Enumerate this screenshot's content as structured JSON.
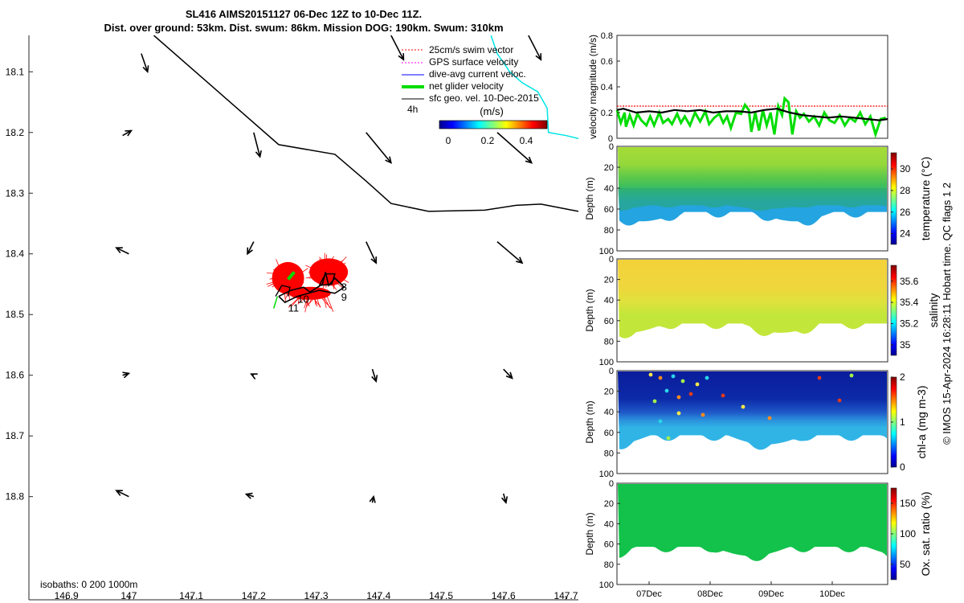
{
  "title": {
    "line1": "SL416 AIMS20151127 06-Dec 12Z to 10-Dec 11Z.",
    "line2": "Dist. over ground: 53km. Dist. swum: 86km. Mission DOG: 190km. Swum: 310km"
  },
  "legend": {
    "items": [
      {
        "label": "25cm/s swim vector",
        "color": "#ff0000",
        "style": "dotted"
      },
      {
        "label": "GPS surface velocity",
        "color": "#ff00ff",
        "style": "dotted"
      },
      {
        "label": "dive-avg current veloc.",
        "color": "#0000ff",
        "style": "solid"
      },
      {
        "label": "net glider velocity",
        "color": "#00dd00",
        "style": "thick"
      },
      {
        "label": "sfc geo. vel. 10-Dec-2015",
        "color": "#000000",
        "style": "solid"
      }
    ],
    "four_h": "4h"
  },
  "colorbar": {
    "label": "(m/s)",
    "ticks": [
      "0",
      "0.2",
      "0.4"
    ]
  },
  "isobaths_label": "isobaths: 0   200  1000m",
  "footer": "© IMOS 15-Apr-2024 16:28:11 Hobart time. QC flags 1  2",
  "colors": {
    "coast": "#000000",
    "isobath_200": "#00e5e5",
    "swim_vectors": "#ff0000",
    "track": "#000000",
    "net_velocity": "#00dd00",
    "limit_line": "#ff0000"
  },
  "chart_data": [
    {
      "type": "scatter",
      "name": "map",
      "xticks": [
        "146.9",
        "147",
        "147.1",
        "147.2",
        "147.3",
        "147.4",
        "147.5",
        "147.6",
        "147.7"
      ],
      "yticks": [
        "18.1",
        "18.2",
        "18.3",
        "18.4",
        "18.5",
        "18.6",
        "18.7",
        "18.8"
      ],
      "xlim": [
        146.84,
        147.72
      ],
      "ylim": [
        18.04,
        18.97
      ],
      "y_reversed": true,
      "coastline": [
        [
          147.04,
          18.04
        ],
        [
          147.24,
          18.22
        ],
        [
          147.33,
          18.236
        ],
        [
          147.38,
          18.28
        ],
        [
          147.42,
          18.317
        ],
        [
          147.48,
          18.33
        ],
        [
          147.57,
          18.328
        ],
        [
          147.62,
          18.32
        ],
        [
          147.66,
          18.318
        ],
        [
          147.72,
          18.33
        ]
      ],
      "isobath_200m": [
        [
          147.58,
          18.04
        ],
        [
          147.59,
          18.07
        ],
        [
          147.61,
          18.1
        ],
        [
          147.63,
          18.118
        ],
        [
          147.655,
          18.133
        ],
        [
          147.67,
          18.16
        ],
        [
          147.672,
          18.2
        ],
        [
          147.7,
          18.205
        ],
        [
          147.72,
          18.21
        ]
      ],
      "geostrophic_arrows": [
        [
          147.02,
          18.07,
          0.01,
          0.03
        ],
        [
          147.42,
          18.04,
          0.02,
          0.04
        ],
        [
          147.64,
          18.04,
          0.02,
          0.04
        ],
        [
          146.99,
          18.205,
          0.014,
          -0.008
        ],
        [
          147.2,
          18.2,
          0.01,
          0.04
        ],
        [
          147.38,
          18.2,
          0.04,
          0.05
        ],
        [
          147.59,
          18.2,
          0.055,
          0.05
        ],
        [
          147.0,
          18.4,
          -0.02,
          -0.01
        ],
        [
          147.2,
          18.38,
          -0.01,
          0.02
        ],
        [
          147.38,
          18.38,
          0.016,
          0.035
        ],
        [
          147.59,
          18.38,
          0.04,
          0.035
        ],
        [
          146.99,
          18.6,
          0.01,
          -0.003
        ],
        [
          147.2,
          18.6,
          -0.004,
          -0.002
        ],
        [
          147.39,
          18.59,
          0.006,
          0.02
        ],
        [
          147.6,
          18.59,
          0.014,
          0.015
        ],
        [
          147.0,
          18.8,
          -0.02,
          -0.01
        ],
        [
          147.2,
          18.8,
          -0.012,
          -0.004
        ],
        [
          147.39,
          18.81,
          0.002,
          -0.01
        ],
        [
          147.6,
          18.795,
          0.004,
          0.015
        ]
      ],
      "glider_track": [
        [
          147.24,
          18.47
        ],
        [
          147.26,
          18.46
        ],
        [
          147.28,
          18.455
        ],
        [
          147.29,
          18.463
        ],
        [
          147.31,
          18.45
        ],
        [
          147.315,
          18.43
        ],
        [
          147.32,
          18.452
        ],
        [
          147.33,
          18.44
        ],
        [
          147.345,
          18.455
        ],
        [
          147.33,
          18.465
        ],
        [
          147.305,
          18.46
        ],
        [
          147.27,
          18.47
        ],
        [
          147.25,
          18.48
        ],
        [
          147.24,
          18.47
        ]
      ],
      "track_labels": [
        {
          "text": "8",
          "x": 147.34,
          "y": 18.455
        },
        {
          "text": "9",
          "x": 147.34,
          "y": 18.472
        },
        {
          "text": "10",
          "x": 147.27,
          "y": 18.475
        },
        {
          "text": "11",
          "x": 147.255,
          "y": 18.49
        }
      ],
      "red_clusters": [
        {
          "x": 147.255,
          "y": 18.44
        },
        {
          "x": 147.32,
          "y": 18.43
        }
      ]
    },
    {
      "type": "line",
      "name": "velocity",
      "ylabel": "velocity magnitude (m/s)",
      "ylim": [
        0,
        0.8
      ],
      "yticks": [
        "0",
        "0.2",
        "0.4",
        "0.6",
        "0.8"
      ],
      "xlim": [
        0,
        4.23
      ],
      "series": [
        {
          "values_x": [
            0,
            0.1,
            0.3,
            0.5,
            0.7,
            0.9,
            1.1,
            1.3,
            1.5,
            1.7,
            1.9,
            2.1,
            2.3,
            2.5,
            2.7,
            2.9,
            3.1,
            3.3,
            3.5,
            3.7,
            3.9,
            4.1,
            4.23
          ],
          "values_y": [
            0.22,
            0.23,
            0.2,
            0.21,
            0.2,
            0.22,
            0.21,
            0.22,
            0.2,
            0.21,
            0.21,
            0.2,
            0.22,
            0.23,
            0.2,
            0.18,
            0.17,
            0.16,
            0.17,
            0.16,
            0.15,
            0.14,
            0.15
          ]
        },
        {
          "values_x": [
            0,
            0.06,
            0.12,
            0.14,
            0.2,
            0.26,
            0.32,
            0.38,
            0.46,
            0.52,
            0.58,
            0.66,
            0.72,
            0.8,
            0.86,
            0.94,
            1.0,
            1.06,
            1.14,
            1.22,
            1.3,
            1.38,
            1.44,
            1.52,
            1.6,
            1.66,
            1.72,
            1.78,
            1.86,
            1.94,
            2.0,
            2.06,
            2.1,
            2.16,
            2.22,
            2.28,
            2.34,
            2.4,
            2.46,
            2.52,
            2.58,
            2.62,
            2.68,
            2.74,
            2.8,
            2.86,
            2.92,
            3.0,
            3.08,
            3.16,
            3.24,
            3.32,
            3.4,
            3.48,
            3.56,
            3.64,
            3.72,
            3.8,
            3.88,
            3.96,
            4.04,
            4.12,
            4.2
          ],
          "values_y": [
            0.22,
            0.12,
            0.2,
            0.09,
            0.18,
            0.1,
            0.19,
            0.14,
            0.1,
            0.17,
            0.1,
            0.2,
            0.12,
            0.15,
            0.11,
            0.19,
            0.12,
            0.17,
            0.1,
            0.2,
            0.13,
            0.21,
            0.11,
            0.16,
            0.19,
            0.12,
            0.17,
            0.08,
            0.2,
            0.19,
            0.26,
            0.22,
            0.05,
            0.2,
            0.06,
            0.22,
            0.1,
            0.2,
            0.03,
            0.25,
            0.18,
            0.31,
            0.28,
            0.03,
            0.21,
            0.16,
            0.19,
            0.13,
            0.17,
            0.1,
            0.2,
            0.14,
            0.12,
            0.18,
            0.1,
            0.16,
            0.13,
            0.2,
            0.11,
            0.17,
            0.03,
            0.15,
            0.16
          ]
        },
        {
          "values_x": [
            0,
            4.23
          ],
          "values_y": [
            0.25,
            0.25
          ]
        }
      ]
    },
    {
      "type": "heatmap",
      "name": "temperature",
      "ylabel": "Depth (m)",
      "cbar_label": "temperature (°C)",
      "cbar_ticks": [
        "24",
        "26",
        "28",
        "30"
      ],
      "clim": [
        23,
        31.5
      ],
      "yticks": [
        "0",
        "20",
        "40",
        "60",
        "80",
        "100"
      ]
    },
    {
      "type": "heatmap",
      "name": "salinity",
      "ylabel": "Depth (m)",
      "cbar_label": "salinity",
      "cbar_ticks": [
        "35",
        "35.2",
        "35.4",
        "35.6"
      ],
      "clim": [
        34.9,
        35.75
      ],
      "yticks": [
        "0",
        "20",
        "40",
        "60",
        "80",
        "100"
      ]
    },
    {
      "type": "heatmap",
      "name": "chla",
      "ylabel": "Depth (m)",
      "cbar_label": "chl-a (mg m-3)",
      "cbar_ticks": [
        "0",
        "1",
        "2"
      ],
      "clim": [
        0,
        2
      ],
      "yticks": [
        "0",
        "20",
        "40",
        "60",
        "80",
        "100"
      ]
    },
    {
      "type": "heatmap",
      "name": "oxygen",
      "ylabel": "Depth (m)",
      "cbar_label": "Ox. sat. ratio (%)",
      "cbar_ticks": [
        "50",
        "100",
        "150"
      ],
      "clim": [
        25,
        175
      ],
      "yticks": [
        "0",
        "20",
        "40",
        "60",
        "80",
        "100"
      ],
      "xticks": [
        "07Dec",
        "08Dec",
        "09Dec",
        "10Dec"
      ]
    }
  ]
}
